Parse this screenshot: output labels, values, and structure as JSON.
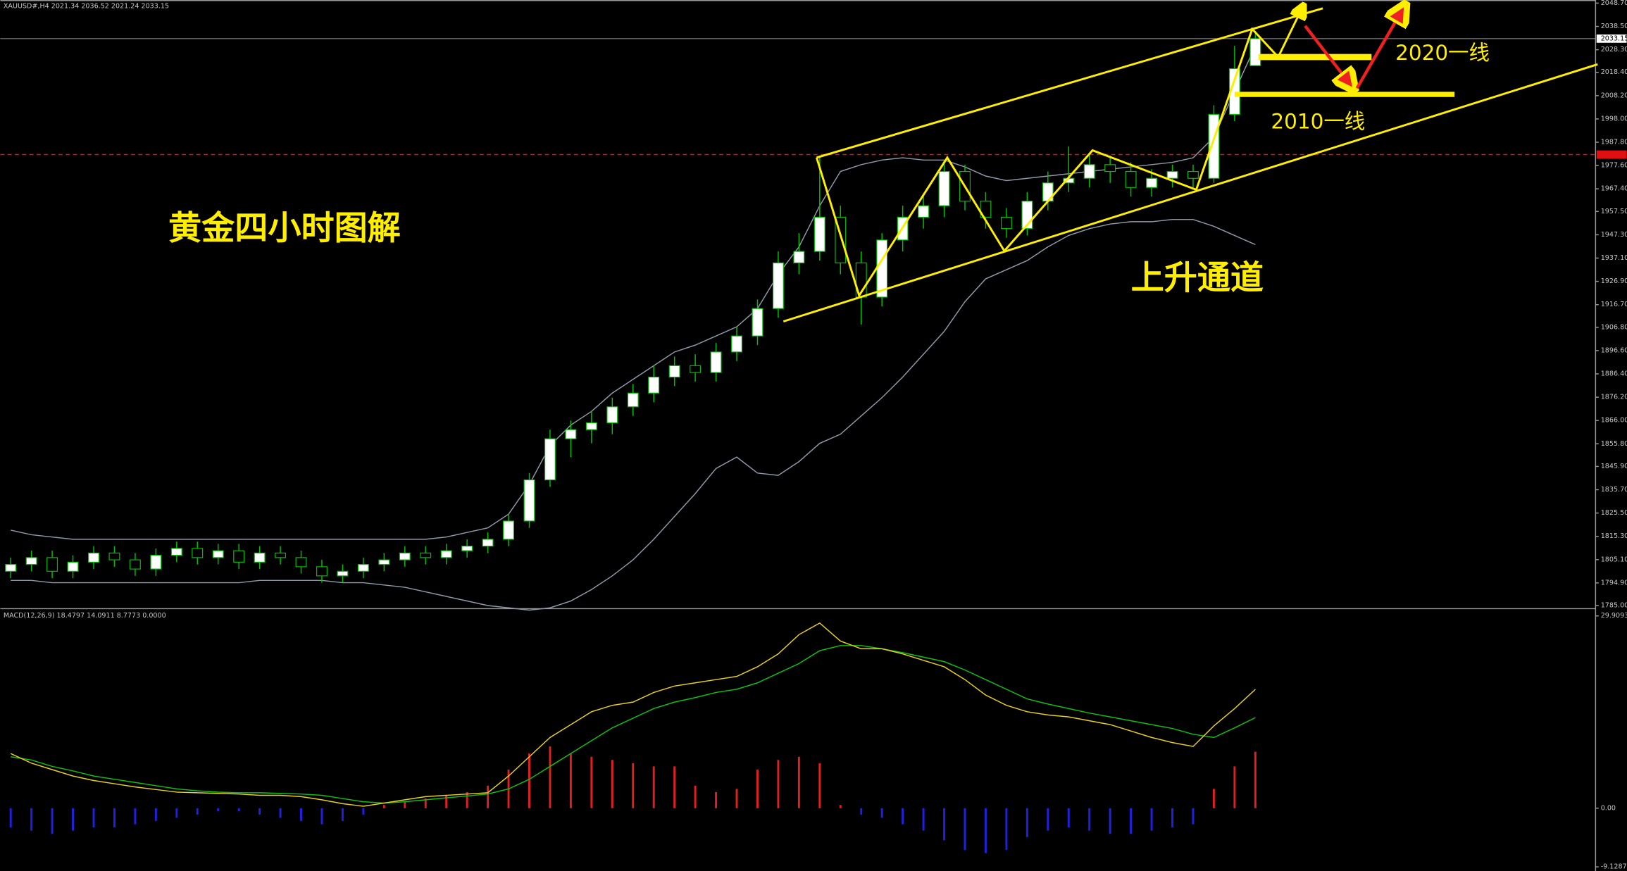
{
  "chart_data": [
    {
      "type": "candlestick",
      "info": "XAUUSD#,H4  2021.34 2036.52 2021.24 2033.15",
      "title": "黄金四小时图解",
      "channel_label": "上升通道",
      "level_labels": [
        "2020一线",
        "2010一线"
      ],
      "categories": [
        null,
        null,
        null,
        null,
        null,
        null,
        null,
        null,
        null,
        null,
        null,
        null,
        null,
        null,
        null,
        null,
        null,
        null,
        null,
        null,
        null,
        null,
        null,
        null,
        null,
        null,
        null,
        null,
        null,
        null,
        null,
        null,
        null,
        null,
        null,
        null,
        null,
        null,
        null,
        null,
        null,
        null,
        null,
        null,
        null,
        null,
        null,
        null,
        null,
        null,
        null,
        null,
        null,
        null,
        null,
        null,
        null,
        null,
        null,
        null,
        null
      ],
      "open": [
        1800,
        1803,
        1806,
        1800,
        1804,
        1808,
        1805,
        1801,
        1807,
        1810,
        1806,
        1809,
        1804,
        1808,
        1806,
        1802,
        1798,
        1800,
        1803,
        1805,
        1808,
        1806,
        1809,
        1811,
        1814,
        1822,
        1840,
        1858,
        1862,
        1865,
        1872,
        1878,
        1885,
        1890,
        1887,
        1896,
        1903,
        1915,
        1935,
        1940,
        1955,
        1935,
        1920,
        1945,
        1955,
        1960,
        1975,
        1962,
        1955,
        1950,
        1962,
        1970,
        1972,
        1978,
        1975,
        1968,
        1972,
        1975,
        1972,
        2000,
        2021.34
      ],
      "high": [
        1806,
        1809,
        1809,
        1807,
        1811,
        1811,
        1808,
        1810,
        1813,
        1813,
        1812,
        1812,
        1811,
        1811,
        1809,
        1805,
        1803,
        1806,
        1808,
        1811,
        1811,
        1812,
        1814,
        1817,
        1825,
        1843,
        1862,
        1866,
        1870,
        1876,
        1882,
        1890,
        1894,
        1895,
        1900,
        1907,
        1919,
        1940,
        1948,
        1982,
        1960,
        1940,
        1948,
        1960,
        1965,
        1980,
        1978,
        1966,
        1959,
        1966,
        1975,
        1986,
        1982,
        1982,
        1979,
        1976,
        1978,
        1978,
        2004,
        2030,
        2036.52
      ],
      "low": [
        1797,
        1800,
        1797,
        1797,
        1801,
        1802,
        1798,
        1798,
        1804,
        1803,
        1803,
        1801,
        1801,
        1803,
        1799,
        1795,
        1795,
        1797,
        1800,
        1802,
        1803,
        1803,
        1806,
        1808,
        1811,
        1819,
        1837,
        1850,
        1856,
        1860,
        1868,
        1874,
        1881,
        1883,
        1883,
        1892,
        1899,
        1911,
        1930,
        1936,
        1930,
        1908,
        1916,
        1940,
        1950,
        1955,
        1958,
        1950,
        1946,
        1947,
        1958,
        1966,
        1968,
        1970,
        1964,
        1964,
        1968,
        1968,
        1970,
        1997,
        2021.24
      ],
      "close": [
        1803,
        1806,
        1800,
        1804,
        1808,
        1805,
        1801,
        1807,
        1810,
        1806,
        1809,
        1804,
        1808,
        1806,
        1802,
        1798,
        1800,
        1803,
        1805,
        1808,
        1806,
        1809,
        1811,
        1814,
        1822,
        1840,
        1858,
        1862,
        1865,
        1872,
        1878,
        1885,
        1890,
        1887,
        1896,
        1903,
        1915,
        1935,
        1940,
        1955,
        1935,
        1920,
        1945,
        1955,
        1960,
        1975,
        1962,
        1955,
        1950,
        1962,
        1970,
        1972,
        1978,
        1975,
        1968,
        1972,
        1975,
        1972,
        2000,
        2020,
        2033.15
      ],
      "upper_band": [
        1818,
        1816,
        1815,
        1814,
        1814,
        1814,
        1814,
        1814,
        1814,
        1814,
        1814,
        1814,
        1814,
        1814,
        1814,
        1814,
        1814,
        1814,
        1814,
        1814,
        1814,
        1815,
        1817,
        1819,
        1825,
        1838,
        1855,
        1864,
        1870,
        1878,
        1884,
        1890,
        1896,
        1899,
        1903,
        1907,
        1915,
        1930,
        1942,
        1960,
        1975,
        1978,
        1980,
        1981,
        1980,
        1980,
        1977,
        1973,
        1971,
        1972,
        1973,
        1974,
        1975,
        1976,
        1977,
        1978,
        1979,
        1981,
        1990,
        2010,
        2030
      ],
      "lower_band": [
        1796,
        1796,
        1795,
        1795,
        1795,
        1795,
        1795,
        1795,
        1795,
        1795,
        1795,
        1795,
        1796,
        1796,
        1796,
        1796,
        1795,
        1795,
        1794,
        1793,
        1791,
        1789,
        1787,
        1785,
        1784,
        1783,
        1784,
        1787,
        1792,
        1798,
        1805,
        1814,
        1824,
        1834,
        1845,
        1850,
        1843,
        1842,
        1848,
        1856,
        1860,
        1868,
        1876,
        1885,
        1895,
        1905,
        1918,
        1928,
        1932,
        1936,
        1942,
        1947,
        1950,
        1952,
        1953,
        1953,
        1954,
        1954,
        1951,
        1947,
        1943
      ],
      "band_color": "#8e9aaa",
      "up_color": "#ffffff",
      "down_color": "#000000",
      "wick_color": "#00c000",
      "current_price": 2033.15,
      "alert_level": 1982.4,
      "alert_color": "#e01010",
      "ylim": [
        1785,
        2048.7
      ],
      "yticks": [
        {
          "value": 2048.7,
          "label": "2048.70"
        },
        {
          "value": 2038.5,
          "label": "2038.50"
        },
        {
          "value": 2028.3,
          "label": "2028.30"
        },
        {
          "value": 2018.4,
          "label": "2018.40"
        },
        {
          "value": 2008.2,
          "label": "2008.20"
        },
        {
          "value": 1998,
          "label": "1998.00"
        },
        {
          "value": 1987.8,
          "label": "1987.80"
        },
        {
          "value": 1977.6,
          "label": "1977.60"
        },
        {
          "value": 1967.4,
          "label": "1967.40"
        },
        {
          "value": 1957.5,
          "label": "1957.50"
        },
        {
          "value": 1947.3,
          "label": "1947.30"
        },
        {
          "value": 1937.1,
          "label": "1937.10"
        },
        {
          "value": 1926.9,
          "label": "1926.90"
        },
        {
          "value": 1916.7,
          "label": "1916.70"
        },
        {
          "value": 1906.8,
          "label": "1906.80"
        },
        {
          "value": 1896.6,
          "label": "1896.60"
        },
        {
          "value": 1886.4,
          "label": "1886.40"
        },
        {
          "value": 1876.2,
          "label": "1876.20"
        },
        {
          "value": 1866,
          "label": "1866.00"
        },
        {
          "value": 1855.8,
          "label": "1855.80"
        },
        {
          "value": 1845.9,
          "label": "1845.90"
        },
        {
          "value": 1835.7,
          "label": "1835.70"
        },
        {
          "value": 1825.5,
          "label": "1825.50"
        },
        {
          "value": 1815.3,
          "label": "1815.30"
        },
        {
          "value": 1805.1,
          "label": "1805.10"
        },
        {
          "value": 1794.9,
          "label": "1794.90"
        },
        {
          "value": 1785,
          "label": "1785.00"
        }
      ]
    },
    {
      "type": "macd",
      "title": "MACD(12,26,9) 18.4797 14.0911 8.7773 0.0000",
      "histogram": [
        -3,
        -3.5,
        -4,
        -3.5,
        -3,
        -3,
        -2.5,
        -2,
        -1.5,
        -1,
        -0.5,
        -0.5,
        -1,
        -1.5,
        -2,
        -2.5,
        -2,
        -1,
        0.5,
        1,
        1.5,
        2,
        2.5,
        3.5,
        6,
        8.5,
        9.6,
        8.5,
        8,
        7.5,
        7,
        6.5,
        6.5,
        3.5,
        2.5,
        3,
        6,
        7.5,
        8,
        7,
        0.5,
        -1,
        -1.5,
        -2.5,
        -3.5,
        -5,
        -6.5,
        -7,
        -6.5,
        -4.5,
        -3.5,
        -3,
        -3.5,
        -4,
        -4,
        -3.5,
        -3,
        -2.5,
        3,
        6.5,
        8.78
      ],
      "macd": [
        8.5,
        7,
        6,
        5,
        4.3,
        3.8,
        3.3,
        2.9,
        2.5,
        2.4,
        2.3,
        2.2,
        2,
        2,
        1.8,
        1.3,
        0.7,
        0.3,
        0.8,
        1.3,
        1.8,
        2,
        2.2,
        2.4,
        5,
        8,
        11,
        13,
        15,
        16,
        16.5,
        18,
        19,
        19.5,
        20,
        20.5,
        22,
        24,
        27,
        28.8,
        26,
        24.8,
        24.8,
        24,
        23,
        22,
        20,
        17.6,
        16,
        15,
        14.5,
        14.2,
        13.6,
        13,
        12,
        11,
        10.2,
        9.6,
        12.8,
        15.5,
        18.48
      ],
      "signal": [
        8,
        7.5,
        6.5,
        5.8,
        5,
        4.5,
        4,
        3.5,
        3,
        2.7,
        2.5,
        2.4,
        2.4,
        2.3,
        2.2,
        2,
        1.5,
        1,
        0.8,
        1,
        1.3,
        1.6,
        1.9,
        2.2,
        3,
        4.5,
        6.5,
        8.5,
        10.5,
        12.5,
        14,
        15.5,
        16.5,
        17.2,
        18,
        18.5,
        19.5,
        21,
        22.5,
        24.5,
        25.3,
        25.3,
        24.8,
        24.2,
        23.5,
        22.8,
        21.5,
        20,
        18.5,
        17,
        16.2,
        15.5,
        14.8,
        14.2,
        13.6,
        13,
        12.4,
        11.5,
        11,
        12.5,
        14.09
      ],
      "macd_color": "#e8d020",
      "signal_color": "#10c010",
      "positive_color": "#e02020",
      "negative_color": "#2020e0",
      "ylim": [
        -9.1287,
        29.9093
      ],
      "yticks": [
        29.9093,
        {
          "value": 0,
          "label": "0.00"
        },
        -9.1287
      ]
    }
  ]
}
